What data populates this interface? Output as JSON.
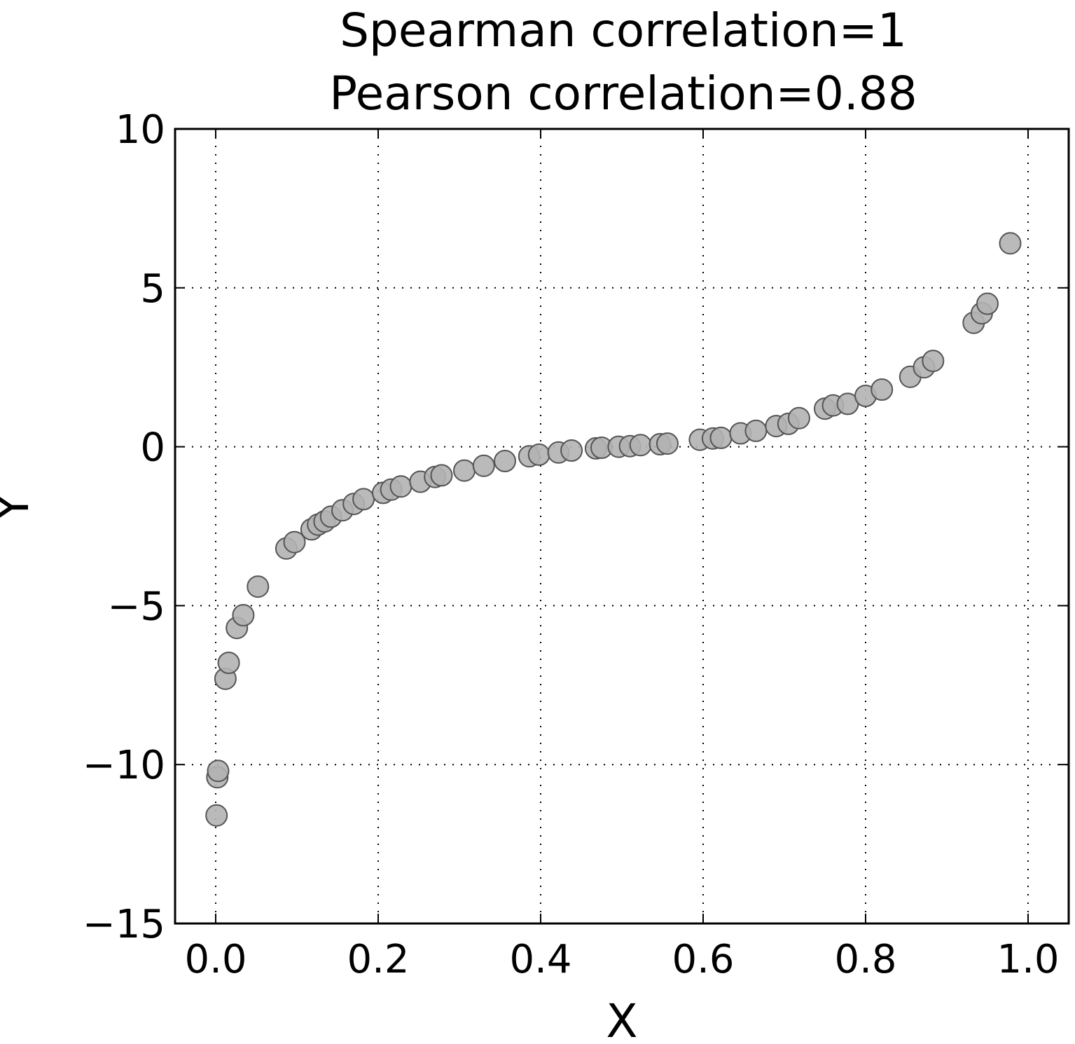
{
  "chart_data": {
    "type": "scatter",
    "title_line1": "Spearman correlation=1",
    "title_line2": "Pearson correlation=0.88",
    "xlabel": "X",
    "ylabel": "Y",
    "xlim": [
      -0.05,
      1.05
    ],
    "ylim": [
      -15,
      10
    ],
    "xticks": [
      0.0,
      0.2,
      0.4,
      0.6,
      0.8,
      1.0
    ],
    "xtick_labels": [
      "0.0",
      "0.2",
      "0.4",
      "0.6",
      "0.8",
      "1.0"
    ],
    "yticks": [
      -15,
      -10,
      -5,
      0,
      5,
      10
    ],
    "ytick_labels": [
      "−15",
      "−10",
      "−5",
      "0",
      "5",
      "10"
    ],
    "grid": true,
    "marker_color": "#b3b3b3",
    "marker_edge_color": "#555555",
    "points": [
      {
        "x": 0.001,
        "y": -11.6
      },
      {
        "x": 0.002,
        "y": -10.4
      },
      {
        "x": 0.003,
        "y": -10.2
      },
      {
        "x": 0.012,
        "y": -7.3
      },
      {
        "x": 0.016,
        "y": -6.8
      },
      {
        "x": 0.026,
        "y": -5.7
      },
      {
        "x": 0.034,
        "y": -5.3
      },
      {
        "x": 0.052,
        "y": -4.4
      },
      {
        "x": 0.087,
        "y": -3.2
      },
      {
        "x": 0.097,
        "y": -3.0
      },
      {
        "x": 0.118,
        "y": -2.6
      },
      {
        "x": 0.126,
        "y": -2.45
      },
      {
        "x": 0.134,
        "y": -2.35
      },
      {
        "x": 0.142,
        "y": -2.2
      },
      {
        "x": 0.156,
        "y": -2.0
      },
      {
        "x": 0.17,
        "y": -1.8
      },
      {
        "x": 0.182,
        "y": -1.65
      },
      {
        "x": 0.206,
        "y": -1.45
      },
      {
        "x": 0.216,
        "y": -1.35
      },
      {
        "x": 0.228,
        "y": -1.25
      },
      {
        "x": 0.252,
        "y": -1.1
      },
      {
        "x": 0.27,
        "y": -0.95
      },
      {
        "x": 0.278,
        "y": -0.9
      },
      {
        "x": 0.306,
        "y": -0.75
      },
      {
        "x": 0.33,
        "y": -0.6
      },
      {
        "x": 0.356,
        "y": -0.45
      },
      {
        "x": 0.386,
        "y": -0.3
      },
      {
        "x": 0.398,
        "y": -0.25
      },
      {
        "x": 0.422,
        "y": -0.18
      },
      {
        "x": 0.438,
        "y": -0.12
      },
      {
        "x": 0.468,
        "y": -0.05
      },
      {
        "x": 0.475,
        "y": -0.03
      },
      {
        "x": 0.496,
        "y": 0.0
      },
      {
        "x": 0.51,
        "y": 0.02
      },
      {
        "x": 0.523,
        "y": 0.05
      },
      {
        "x": 0.547,
        "y": 0.08
      },
      {
        "x": 0.556,
        "y": 0.1
      },
      {
        "x": 0.596,
        "y": 0.22
      },
      {
        "x": 0.612,
        "y": 0.26
      },
      {
        "x": 0.622,
        "y": 0.28
      },
      {
        "x": 0.646,
        "y": 0.42
      },
      {
        "x": 0.665,
        "y": 0.5
      },
      {
        "x": 0.69,
        "y": 0.65
      },
      {
        "x": 0.705,
        "y": 0.72
      },
      {
        "x": 0.718,
        "y": 0.9
      },
      {
        "x": 0.75,
        "y": 1.2
      },
      {
        "x": 0.76,
        "y": 1.3
      },
      {
        "x": 0.778,
        "y": 1.35
      },
      {
        "x": 0.8,
        "y": 1.6
      },
      {
        "x": 0.82,
        "y": 1.8
      },
      {
        "x": 0.855,
        "y": 2.2
      },
      {
        "x": 0.872,
        "y": 2.5
      },
      {
        "x": 0.883,
        "y": 2.7
      },
      {
        "x": 0.933,
        "y": 3.9
      },
      {
        "x": 0.943,
        "y": 4.2
      },
      {
        "x": 0.95,
        "y": 4.5
      },
      {
        "x": 0.978,
        "y": 6.4
      }
    ]
  }
}
